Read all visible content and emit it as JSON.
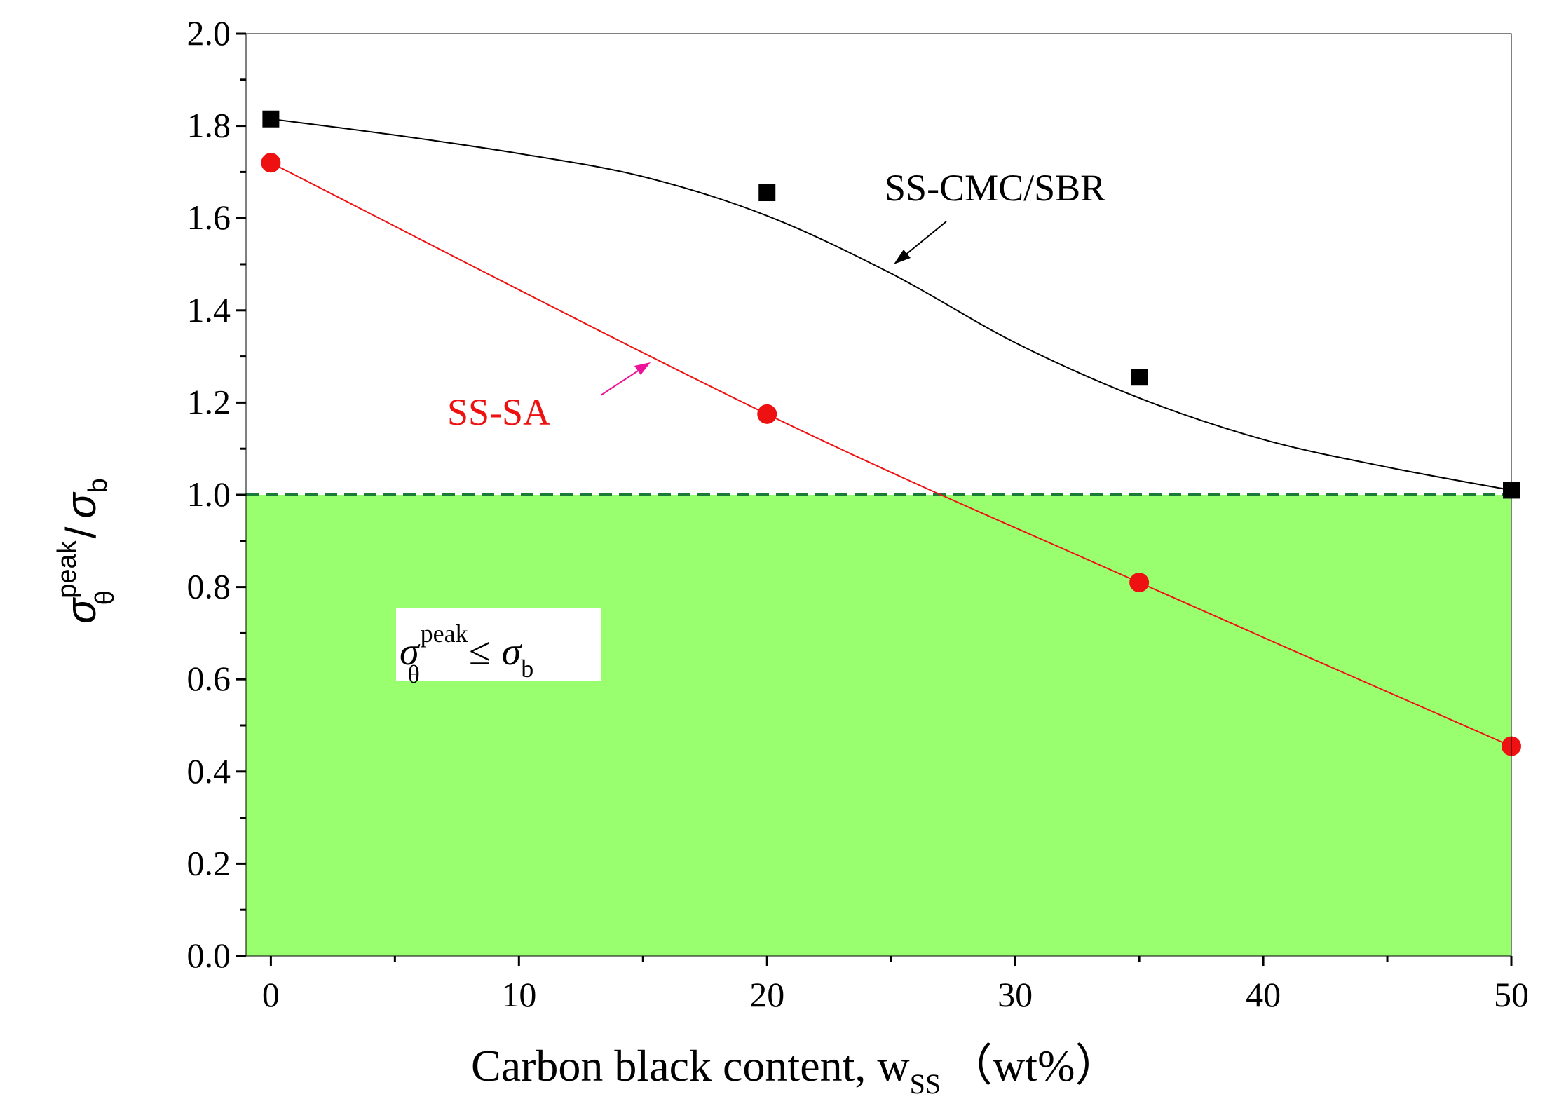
{
  "chart_data": {
    "type": "scatter",
    "title": "",
    "xlabel": {
      "main": "Carbon black content, w",
      "sub": "SS",
      "unit": "（wt%）"
    },
    "ylabel": {
      "sigma": "σ",
      "sup": "peak",
      "sub": "θ",
      "slash": "/",
      "sigma2": "σ",
      "sub2": "b"
    },
    "xlim": [
      -1,
      50
    ],
    "ylim": [
      0,
      2.0
    ],
    "x_ticks": [
      0,
      10,
      20,
      30,
      40,
      50
    ],
    "x_tick_labels": [
      "0",
      "10",
      "20",
      "30",
      "40",
      "50"
    ],
    "y_ticks": [
      0,
      0.2,
      0.4,
      0.6,
      0.8,
      1.0,
      1.2,
      1.4,
      1.6,
      1.8,
      2.0
    ],
    "y_tick_labels": [
      "0.0",
      "0.2",
      "0.4",
      "0.6",
      "0.8",
      "1.0",
      "1.2",
      "1.4",
      "1.6",
      "1.8",
      "2.0"
    ],
    "threshold": {
      "y": 1.0,
      "style": "dashed",
      "color": "#1a7a3a",
      "fill_color": "#99ff6f"
    },
    "series": [
      {
        "name": "SS-CMC/SBR",
        "color": "#000000",
        "marker": "square",
        "x": [
          0,
          20,
          35,
          50
        ],
        "y": [
          1.815,
          1.655,
          1.255,
          1.01
        ],
        "fit_x": [
          0,
          5,
          10,
          15,
          20,
          25,
          30,
          35,
          40,
          45,
          50
        ],
        "fit_y": [
          1.815,
          1.78,
          1.74,
          1.69,
          1.605,
          1.48,
          1.33,
          1.21,
          1.12,
          1.06,
          1.01
        ]
      },
      {
        "name": "SS-SA",
        "color": "#ee1111",
        "marker": "circle",
        "x": [
          0,
          20,
          35,
          50
        ],
        "y": [
          1.72,
          1.175,
          0.81,
          0.455
        ],
        "fit_x": [
          0,
          20,
          35,
          50
        ],
        "fit_y": [
          1.72,
          1.175,
          0.81,
          0.455
        ]
      }
    ],
    "annotations": [
      {
        "text": "SS-CMC/SBR",
        "color": "#000000",
        "target": [
          25,
          1.5
        ],
        "arrow_color": "#000000"
      },
      {
        "text": "SS-SA",
        "color": "#ee1111",
        "target": [
          15.5,
          1.3
        ],
        "arrow_color": "#ee1199"
      }
    ],
    "region_label": {
      "sigma": "σ",
      "sup": "peak",
      "sub": "θ",
      "leq": "≤",
      "sigma2": "σ",
      "sub2": "b"
    }
  }
}
